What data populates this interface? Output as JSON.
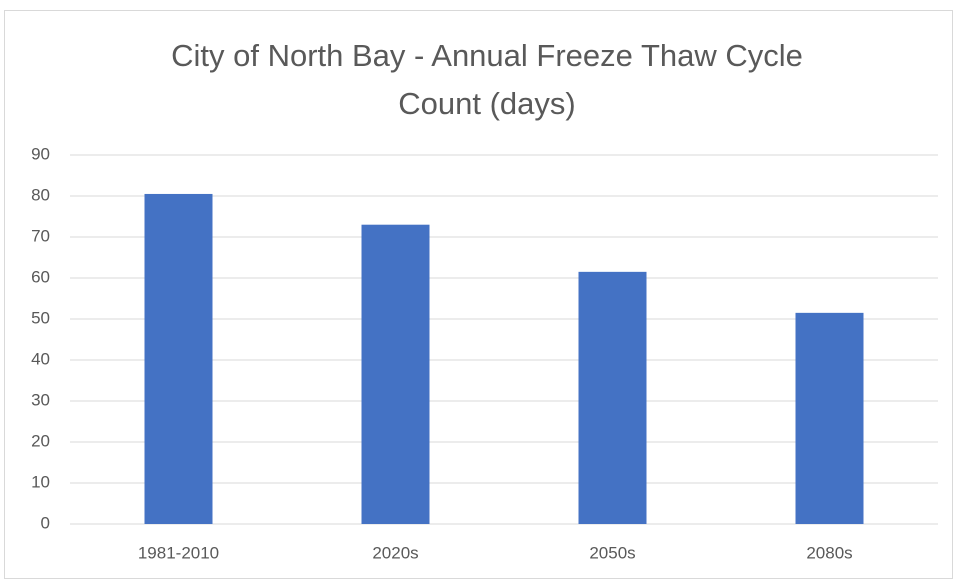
{
  "chart_data": {
    "type": "bar",
    "title": "City of North Bay - Annual Freeze Thaw Cycle Count (days)",
    "categories": [
      "1981-2010",
      "2020s",
      "2050s",
      "2080s"
    ],
    "values": [
      80.5,
      73,
      61.5,
      51.5
    ],
    "color": "#4472c4",
    "ylim": [
      0,
      90
    ],
    "yticks": [
      0,
      10,
      20,
      30,
      40,
      50,
      60,
      70,
      80,
      90
    ],
    "grid": true
  }
}
